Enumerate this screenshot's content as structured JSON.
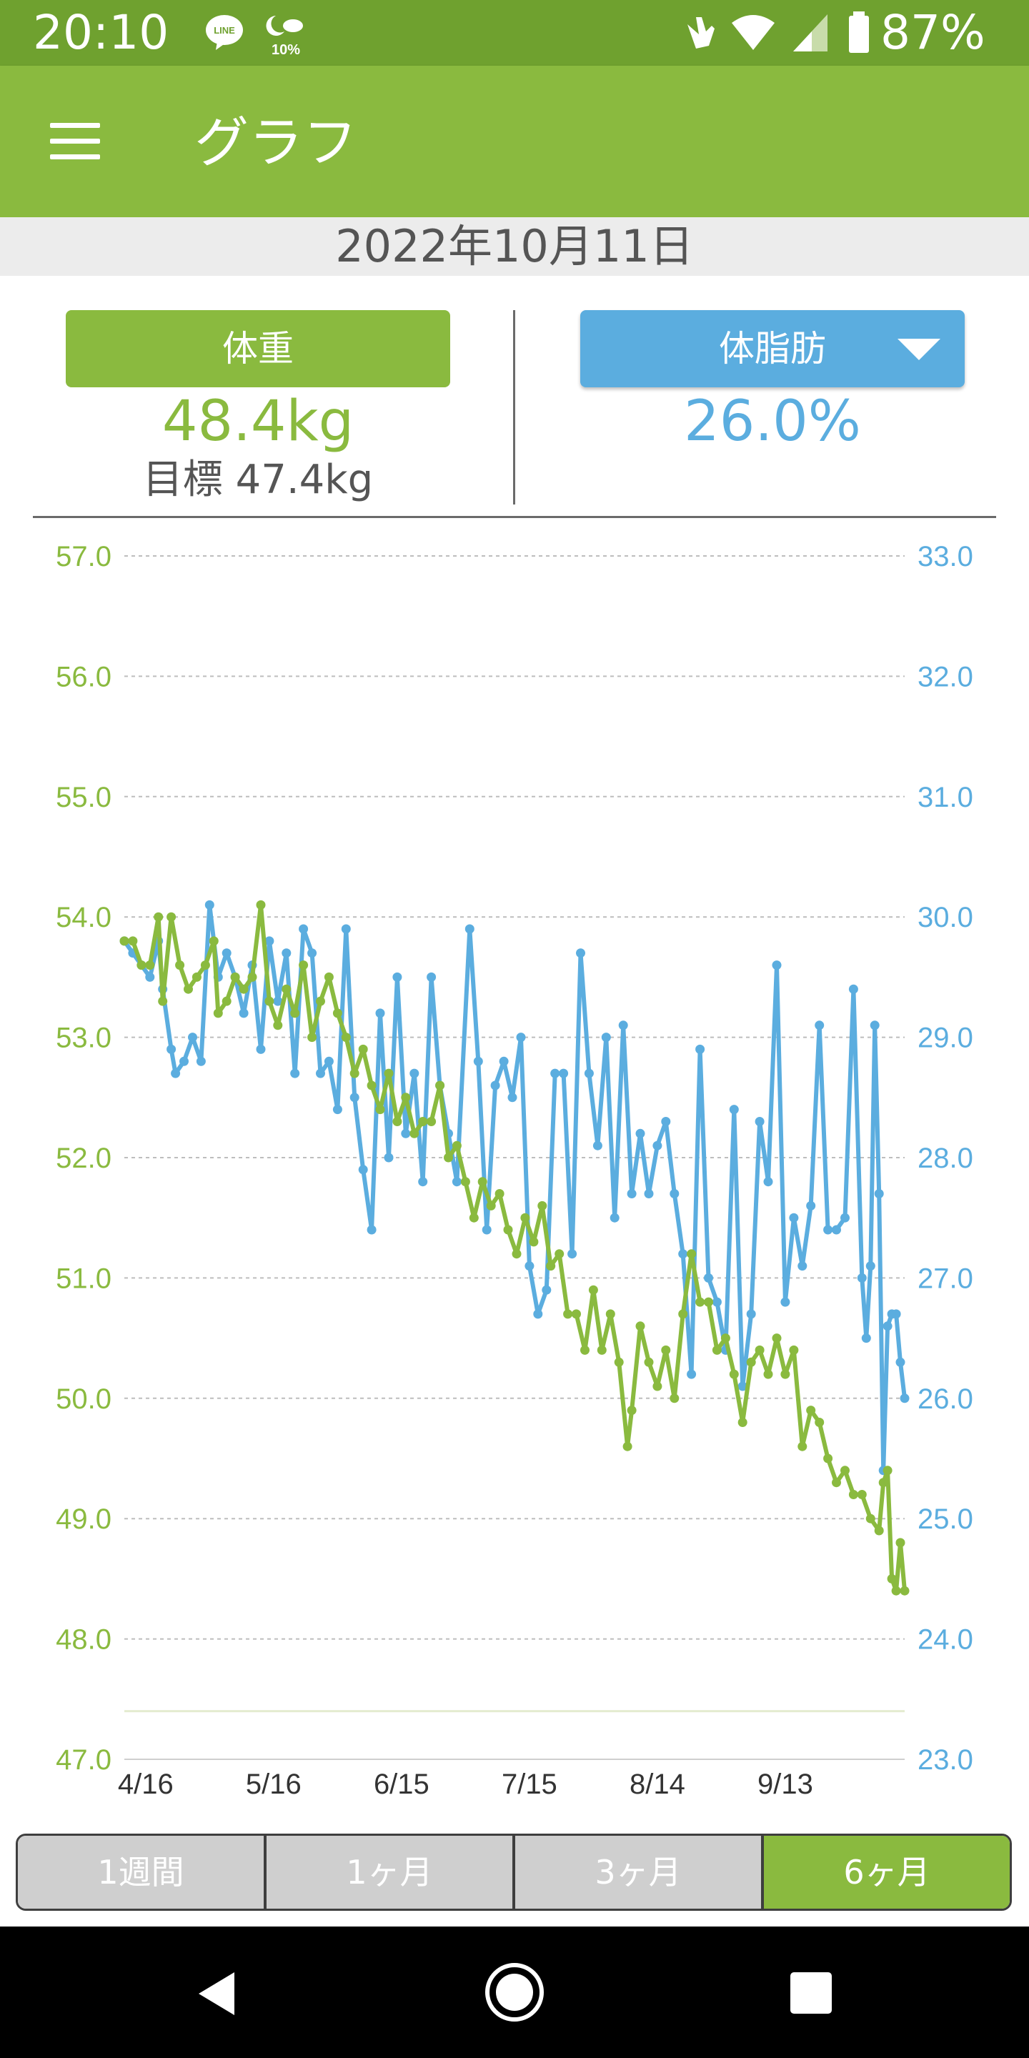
{
  "status_bar": {
    "time": "20:10",
    "line_icon_label": "LINE",
    "weather_text": "10%",
    "battery_percent": "87%",
    "icons": [
      "line-icon",
      "weather-icon",
      "gesture-icon",
      "wifi-icon",
      "signal-icon",
      "battery-icon"
    ]
  },
  "app_bar": {
    "menu_icon": "hamburger-menu-icon",
    "title": "グラフ"
  },
  "date": "2022年10月11日",
  "weight": {
    "label": "体重",
    "value": "48.4kg",
    "goal": "目標 47.4kg"
  },
  "body_fat": {
    "label": "体脂肪",
    "value": "26.0%",
    "dropdown_icon": "triangle-down-icon"
  },
  "colors": {
    "weight": "#8aba3f",
    "fat": "#5baddf",
    "grid": "#bdbdbd",
    "goal": "#e4ecd0"
  },
  "chart_data": {
    "type": "line",
    "x_tick_labels": [
      "4/16",
      "5/16",
      "6/15",
      "7/15",
      "8/14",
      "9/13"
    ],
    "x_tick_dates": [
      "2022-04-16",
      "2022-05-16",
      "2022-06-15",
      "2022-07-15",
      "2022-08-14",
      "2022-09-13"
    ],
    "x_range": [
      "2022-04-11",
      "2022-10-11"
    ],
    "y_left": {
      "ticks": [
        "57.0",
        "56.0",
        "55.0",
        "54.0",
        "53.0",
        "52.0",
        "51.0",
        "50.0",
        "49.0",
        "48.0",
        "47.0"
      ],
      "range": [
        47,
        57
      ],
      "unit": "kg"
    },
    "y_right": {
      "ticks": [
        "33.0",
        "32.0",
        "31.0",
        "30.0",
        "29.0",
        "28.0",
        "27.0",
        "26.0",
        "25.0",
        "24.0",
        "23.0"
      ],
      "range": [
        23,
        33
      ],
      "unit": "%"
    },
    "goal_weight": 47.4,
    "grid": true,
    "series": [
      {
        "axis": "left",
        "color": "#8aba3f",
        "points": [
          [
            "2022-04-11",
            53.8
          ],
          [
            "2022-04-13",
            53.8
          ],
          [
            "2022-04-15",
            53.6
          ],
          [
            "2022-04-17",
            53.6
          ],
          [
            "2022-04-19",
            54.0
          ],
          [
            "2022-04-20",
            53.3
          ],
          [
            "2022-04-22",
            54.0
          ],
          [
            "2022-04-24",
            53.6
          ],
          [
            "2022-04-26",
            53.4
          ],
          [
            "2022-04-28",
            53.5
          ],
          [
            "2022-04-30",
            53.6
          ],
          [
            "2022-05-02",
            53.8
          ],
          [
            "2022-05-03",
            53.2
          ],
          [
            "2022-05-05",
            53.3
          ],
          [
            "2022-05-07",
            53.5
          ],
          [
            "2022-05-09",
            53.4
          ],
          [
            "2022-05-11",
            53.5
          ],
          [
            "2022-05-13",
            54.1
          ],
          [
            "2022-05-15",
            53.3
          ],
          [
            "2022-05-17",
            53.1
          ],
          [
            "2022-05-19",
            53.4
          ],
          [
            "2022-05-21",
            53.2
          ],
          [
            "2022-05-23",
            53.6
          ],
          [
            "2022-05-25",
            53.0
          ],
          [
            "2022-05-27",
            53.3
          ],
          [
            "2022-05-29",
            53.5
          ],
          [
            "2022-05-31",
            53.2
          ],
          [
            "2022-06-02",
            53.0
          ],
          [
            "2022-06-04",
            52.7
          ],
          [
            "2022-06-06",
            52.9
          ],
          [
            "2022-06-08",
            52.6
          ],
          [
            "2022-06-10",
            52.4
          ],
          [
            "2022-06-12",
            52.7
          ],
          [
            "2022-06-14",
            52.3
          ],
          [
            "2022-06-16",
            52.5
          ],
          [
            "2022-06-18",
            52.2
          ],
          [
            "2022-06-20",
            52.3
          ],
          [
            "2022-06-22",
            52.3
          ],
          [
            "2022-06-24",
            52.6
          ],
          [
            "2022-06-26",
            52.0
          ],
          [
            "2022-06-28",
            52.1
          ],
          [
            "2022-06-30",
            51.8
          ],
          [
            "2022-07-02",
            51.5
          ],
          [
            "2022-07-04",
            51.8
          ],
          [
            "2022-07-06",
            51.6
          ],
          [
            "2022-07-08",
            51.7
          ],
          [
            "2022-07-10",
            51.4
          ],
          [
            "2022-07-12",
            51.2
          ],
          [
            "2022-07-14",
            51.5
          ],
          [
            "2022-07-16",
            51.3
          ],
          [
            "2022-07-18",
            51.6
          ],
          [
            "2022-07-20",
            51.1
          ],
          [
            "2022-07-22",
            51.2
          ],
          [
            "2022-07-24",
            50.7
          ],
          [
            "2022-07-26",
            50.7
          ],
          [
            "2022-07-28",
            50.4
          ],
          [
            "2022-07-30",
            50.9
          ],
          [
            "2022-08-01",
            50.4
          ],
          [
            "2022-08-03",
            50.7
          ],
          [
            "2022-08-05",
            50.3
          ],
          [
            "2022-08-07",
            49.6
          ],
          [
            "2022-08-08",
            49.9
          ],
          [
            "2022-08-10",
            50.6
          ],
          [
            "2022-08-12",
            50.3
          ],
          [
            "2022-08-14",
            50.1
          ],
          [
            "2022-08-16",
            50.4
          ],
          [
            "2022-08-18",
            50.0
          ],
          [
            "2022-08-20",
            50.7
          ],
          [
            "2022-08-22",
            51.2
          ],
          [
            "2022-08-24",
            50.8
          ],
          [
            "2022-08-26",
            50.8
          ],
          [
            "2022-08-28",
            50.4
          ],
          [
            "2022-08-30",
            50.5
          ],
          [
            "2022-09-01",
            50.2
          ],
          [
            "2022-09-03",
            49.8
          ],
          [
            "2022-09-05",
            50.3
          ],
          [
            "2022-09-07",
            50.4
          ],
          [
            "2022-09-09",
            50.2
          ],
          [
            "2022-09-11",
            50.5
          ],
          [
            "2022-09-13",
            50.2
          ],
          [
            "2022-09-15",
            50.4
          ],
          [
            "2022-09-17",
            49.6
          ],
          [
            "2022-09-19",
            49.9
          ],
          [
            "2022-09-21",
            49.8
          ],
          [
            "2022-09-23",
            49.5
          ],
          [
            "2022-09-25",
            49.3
          ],
          [
            "2022-09-27",
            49.4
          ],
          [
            "2022-09-29",
            49.2
          ],
          [
            "2022-10-01",
            49.2
          ],
          [
            "2022-10-03",
            49.0
          ],
          [
            "2022-10-05",
            48.9
          ],
          [
            "2022-10-06",
            49.3
          ],
          [
            "2022-10-07",
            49.4
          ],
          [
            "2022-10-08",
            48.5
          ],
          [
            "2022-10-09",
            48.4
          ],
          [
            "2022-10-10",
            48.8
          ],
          [
            "2022-10-11",
            48.4
          ]
        ]
      },
      {
        "axis": "right",
        "color": "#5baddf",
        "points": [
          [
            "2022-04-11",
            29.8
          ],
          [
            "2022-04-13",
            29.7
          ],
          [
            "2022-04-15",
            29.6
          ],
          [
            "2022-04-17",
            29.5
          ],
          [
            "2022-04-19",
            29.8
          ],
          [
            "2022-04-20",
            29.4
          ],
          [
            "2022-04-22",
            28.9
          ],
          [
            "2022-04-23",
            28.7
          ],
          [
            "2022-04-25",
            28.8
          ],
          [
            "2022-04-27",
            29.0
          ],
          [
            "2022-04-29",
            28.8
          ],
          [
            "2022-05-01",
            30.1
          ],
          [
            "2022-05-03",
            29.5
          ],
          [
            "2022-05-05",
            29.7
          ],
          [
            "2022-05-07",
            29.5
          ],
          [
            "2022-05-09",
            29.2
          ],
          [
            "2022-05-11",
            29.6
          ],
          [
            "2022-05-13",
            28.9
          ],
          [
            "2022-05-15",
            29.8
          ],
          [
            "2022-05-17",
            29.3
          ],
          [
            "2022-05-19",
            29.7
          ],
          [
            "2022-05-21",
            28.7
          ],
          [
            "2022-05-23",
            29.9
          ],
          [
            "2022-05-25",
            29.7
          ],
          [
            "2022-05-27",
            28.7
          ],
          [
            "2022-05-29",
            28.8
          ],
          [
            "2022-05-31",
            28.4
          ],
          [
            "2022-06-02",
            29.9
          ],
          [
            "2022-06-04",
            28.5
          ],
          [
            "2022-06-06",
            27.9
          ],
          [
            "2022-06-08",
            27.4
          ],
          [
            "2022-06-10",
            29.2
          ],
          [
            "2022-06-12",
            28.0
          ],
          [
            "2022-06-14",
            29.5
          ],
          [
            "2022-06-16",
            28.2
          ],
          [
            "2022-06-18",
            28.7
          ],
          [
            "2022-06-20",
            27.8
          ],
          [
            "2022-06-22",
            29.5
          ],
          [
            "2022-06-24",
            28.6
          ],
          [
            "2022-06-26",
            28.2
          ],
          [
            "2022-06-28",
            27.8
          ],
          [
            "2022-07-01",
            29.9
          ],
          [
            "2022-07-03",
            28.8
          ],
          [
            "2022-07-05",
            27.4
          ],
          [
            "2022-07-07",
            28.6
          ],
          [
            "2022-07-09",
            28.8
          ],
          [
            "2022-07-11",
            28.5
          ],
          [
            "2022-07-13",
            29.0
          ],
          [
            "2022-07-15",
            27.1
          ],
          [
            "2022-07-17",
            26.7
          ],
          [
            "2022-07-19",
            26.9
          ],
          [
            "2022-07-21",
            28.7
          ],
          [
            "2022-07-23",
            28.7
          ],
          [
            "2022-07-25",
            27.2
          ],
          [
            "2022-07-27",
            29.7
          ],
          [
            "2022-07-29",
            28.7
          ],
          [
            "2022-07-31",
            28.1
          ],
          [
            "2022-08-02",
            29.0
          ],
          [
            "2022-08-04",
            27.5
          ],
          [
            "2022-08-06",
            29.1
          ],
          [
            "2022-08-08",
            27.7
          ],
          [
            "2022-08-10",
            28.2
          ],
          [
            "2022-08-12",
            27.7
          ],
          [
            "2022-08-14",
            28.1
          ],
          [
            "2022-08-16",
            28.3
          ],
          [
            "2022-08-18",
            27.7
          ],
          [
            "2022-08-20",
            27.2
          ],
          [
            "2022-08-22",
            26.2
          ],
          [
            "2022-08-24",
            28.9
          ],
          [
            "2022-08-26",
            27.0
          ],
          [
            "2022-08-28",
            26.8
          ],
          [
            "2022-08-30",
            26.4
          ],
          [
            "2022-09-01",
            28.4
          ],
          [
            "2022-09-03",
            26.1
          ],
          [
            "2022-09-05",
            26.7
          ],
          [
            "2022-09-07",
            28.3
          ],
          [
            "2022-09-09",
            27.8
          ],
          [
            "2022-09-11",
            29.6
          ],
          [
            "2022-09-13",
            26.8
          ],
          [
            "2022-09-15",
            27.5
          ],
          [
            "2022-09-17",
            27.1
          ],
          [
            "2022-09-19",
            27.6
          ],
          [
            "2022-09-21",
            29.1
          ],
          [
            "2022-09-23",
            27.4
          ],
          [
            "2022-09-25",
            27.4
          ],
          [
            "2022-09-27",
            27.5
          ],
          [
            "2022-09-29",
            29.4
          ],
          [
            "2022-10-01",
            27.0
          ],
          [
            "2022-10-02",
            26.5
          ],
          [
            "2022-10-03",
            27.1
          ],
          [
            "2022-10-04",
            29.1
          ],
          [
            "2022-10-05",
            27.7
          ],
          [
            "2022-10-06",
            25.4
          ],
          [
            "2022-10-07",
            26.6
          ],
          [
            "2022-10-08",
            26.7
          ],
          [
            "2022-10-09",
            26.7
          ],
          [
            "2022-10-10",
            26.3
          ],
          [
            "2022-10-11",
            26.0
          ]
        ]
      }
    ]
  },
  "range_tabs": [
    {
      "label": "1週間",
      "active": false
    },
    {
      "label": "1ヶ月",
      "active": false
    },
    {
      "label": "3ヶ月",
      "active": false
    },
    {
      "label": "6ヶ月",
      "active": true
    }
  ],
  "nav_bar": {
    "icons": [
      "back-icon",
      "home-icon",
      "recents-icon"
    ]
  }
}
